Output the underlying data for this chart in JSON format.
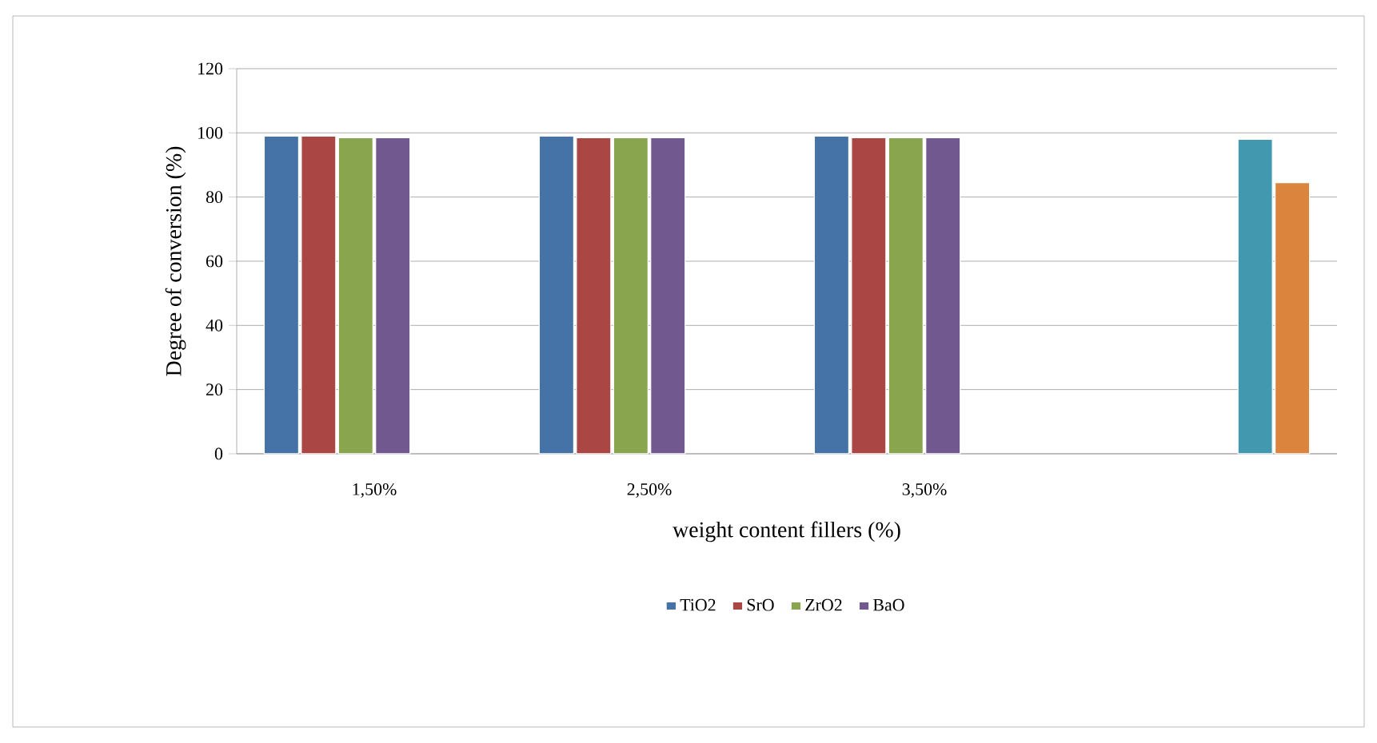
{
  "chart_data": {
    "type": "bar",
    "xlabel": "weight content fillers (%)",
    "ylabel": "Degree of conversion (%)",
    "categories": [
      "1,50%",
      "2,50%",
      "3,50%",
      null
    ],
    "series": [
      {
        "name": "TiO2",
        "color": "#4572a7",
        "values": [
          99,
          99,
          99,
          null
        ]
      },
      {
        "name": "SrO",
        "color": "#aa4643",
        "values": [
          99,
          98.5,
          98.5,
          null
        ]
      },
      {
        "name": "ZrO2",
        "color": "#89a54e",
        "values": [
          98.5,
          98.5,
          98.5,
          null
        ]
      },
      {
        "name": "BaO",
        "color": "#71588f",
        "values": [
          98.5,
          98.5,
          98.5,
          null
        ]
      },
      {
        "color": "#4198af",
        "values": [
          null,
          null,
          null,
          98
        ]
      },
      {
        "color": "#db843d",
        "values": [
          null,
          null,
          null,
          84.5
        ]
      }
    ],
    "ylim": [
      0,
      120
    ],
    "yticks": [
      0,
      20,
      40,
      60,
      80,
      100,
      120
    ],
    "grid": "y",
    "legend": "bottom"
  }
}
